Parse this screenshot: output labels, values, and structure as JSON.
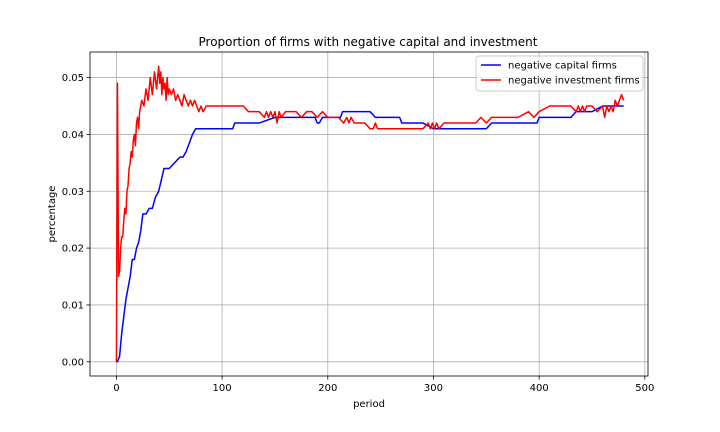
{
  "chart_data": {
    "type": "line",
    "title": "Proportion of firms with negative capital and investment",
    "xlabel": "period",
    "ylabel": "percentage",
    "xlim": [
      -25,
      503
    ],
    "ylim": [
      -0.0025,
      0.0545
    ],
    "xticks": [
      0,
      100,
      200,
      300,
      400,
      500
    ],
    "xtick_labels": [
      "0",
      "100",
      "200",
      "300",
      "400",
      "500"
    ],
    "yticks": [
      0.0,
      0.01,
      0.02,
      0.03,
      0.04,
      0.05
    ],
    "ytick_labels": [
      "0.00",
      "0.01",
      "0.02",
      "0.03",
      "0.04",
      "0.05"
    ],
    "grid": true,
    "legend_position": "upper right",
    "series": [
      {
        "name": "negative capital firms",
        "color": "#0000ff",
        "x": [
          0,
          1,
          3,
          5,
          7,
          9,
          11,
          13,
          15,
          17,
          19,
          21,
          23,
          25,
          28,
          31,
          34,
          37,
          40,
          45,
          50,
          55,
          60,
          63,
          66,
          68,
          70,
          72,
          75,
          80,
          85,
          90,
          100,
          110,
          112,
          118,
          125,
          135,
          150,
          170,
          188,
          190,
          192,
          195,
          200,
          205,
          212,
          214,
          220,
          230,
          240,
          245,
          250,
          260,
          268,
          270,
          280,
          290,
          300,
          320,
          340,
          350,
          355,
          360,
          380,
          390,
          398,
          400,
          410,
          420,
          430,
          435,
          440,
          450,
          460,
          470,
          480
        ],
        "y": [
          0,
          0,
          0.001,
          0.005,
          0.008,
          0.011,
          0.013,
          0.015,
          0.018,
          0.018,
          0.02,
          0.021,
          0.023,
          0.026,
          0.026,
          0.027,
          0.027,
          0.029,
          0.03,
          0.034,
          0.034,
          0.035,
          0.036,
          0.036,
          0.037,
          0.038,
          0.039,
          0.04,
          0.041,
          0.041,
          0.041,
          0.041,
          0.041,
          0.041,
          0.042,
          0.042,
          0.042,
          0.042,
          0.043,
          0.043,
          0.043,
          0.042,
          0.042,
          0.043,
          0.043,
          0.043,
          0.043,
          0.044,
          0.044,
          0.044,
          0.044,
          0.043,
          0.043,
          0.043,
          0.043,
          0.042,
          0.042,
          0.042,
          0.041,
          0.041,
          0.041,
          0.041,
          0.042,
          0.042,
          0.042,
          0.042,
          0.042,
          0.043,
          0.043,
          0.043,
          0.043,
          0.044,
          0.044,
          0.044,
          0.045,
          0.045,
          0.045
        ]
      },
      {
        "name": "negative investment firms",
        "color": "#ff0000",
        "x": [
          0,
          1,
          2,
          3,
          4,
          5,
          6,
          7,
          8,
          9,
          10,
          11,
          12,
          13,
          14,
          15,
          16,
          17,
          18,
          19,
          20,
          21,
          22,
          24,
          26,
          28,
          30,
          32,
          34,
          36,
          38,
          40,
          41,
          42,
          43,
          44,
          45,
          46,
          47,
          48,
          49,
          50,
          52,
          54,
          56,
          58,
          60,
          62,
          64,
          66,
          68,
          70,
          72,
          74,
          76,
          78,
          80,
          82,
          85,
          88,
          90,
          95,
          100,
          110,
          120,
          125,
          130,
          135,
          140,
          142,
          144,
          146,
          148,
          150,
          152,
          154,
          156,
          160,
          165,
          170,
          175,
          180,
          185,
          190,
          195,
          200,
          205,
          210,
          215,
          218,
          220,
          222,
          225,
          230,
          235,
          240,
          243,
          245,
          247,
          250,
          260,
          270,
          280,
          290,
          295,
          297,
          299,
          301,
          303,
          305,
          310,
          320,
          340,
          345,
          350,
          355,
          360,
          370,
          380,
          390,
          395,
          400,
          410,
          420,
          430,
          435,
          437,
          439,
          441,
          443,
          445,
          450,
          455,
          460,
          462,
          464,
          466,
          468,
          470,
          472,
          474,
          476,
          478,
          480
        ],
        "y": [
          0,
          0.049,
          0.015,
          0.016,
          0.02,
          0.022,
          0.022,
          0.025,
          0.027,
          0.026,
          0.03,
          0.031,
          0.034,
          0.035,
          0.037,
          0.036,
          0.039,
          0.04,
          0.038,
          0.042,
          0.043,
          0.041,
          0.044,
          0.046,
          0.045,
          0.048,
          0.046,
          0.05,
          0.047,
          0.051,
          0.048,
          0.052,
          0.049,
          0.051,
          0.047,
          0.05,
          0.048,
          0.049,
          0.046,
          0.05,
          0.047,
          0.048,
          0.047,
          0.048,
          0.046,
          0.047,
          0.046,
          0.045,
          0.047,
          0.046,
          0.045,
          0.046,
          0.045,
          0.046,
          0.045,
          0.044,
          0.045,
          0.044,
          0.045,
          0.045,
          0.045,
          0.045,
          0.045,
          0.045,
          0.045,
          0.044,
          0.044,
          0.044,
          0.043,
          0.044,
          0.043,
          0.044,
          0.043,
          0.044,
          0.042,
          0.044,
          0.043,
          0.044,
          0.044,
          0.044,
          0.043,
          0.044,
          0.044,
          0.043,
          0.044,
          0.043,
          0.043,
          0.043,
          0.042,
          0.043,
          0.042,
          0.043,
          0.042,
          0.042,
          0.042,
          0.041,
          0.041,
          0.042,
          0.041,
          0.041,
          0.041,
          0.041,
          0.041,
          0.041,
          0.042,
          0.041,
          0.042,
          0.041,
          0.042,
          0.041,
          0.042,
          0.042,
          0.042,
          0.043,
          0.042,
          0.043,
          0.043,
          0.043,
          0.043,
          0.044,
          0.043,
          0.044,
          0.045,
          0.045,
          0.045,
          0.044,
          0.045,
          0.044,
          0.045,
          0.044,
          0.045,
          0.045,
          0.044,
          0.045,
          0.043,
          0.045,
          0.044,
          0.045,
          0.044,
          0.046,
          0.045,
          0.046,
          0.047,
          0.046
        ]
      }
    ]
  }
}
